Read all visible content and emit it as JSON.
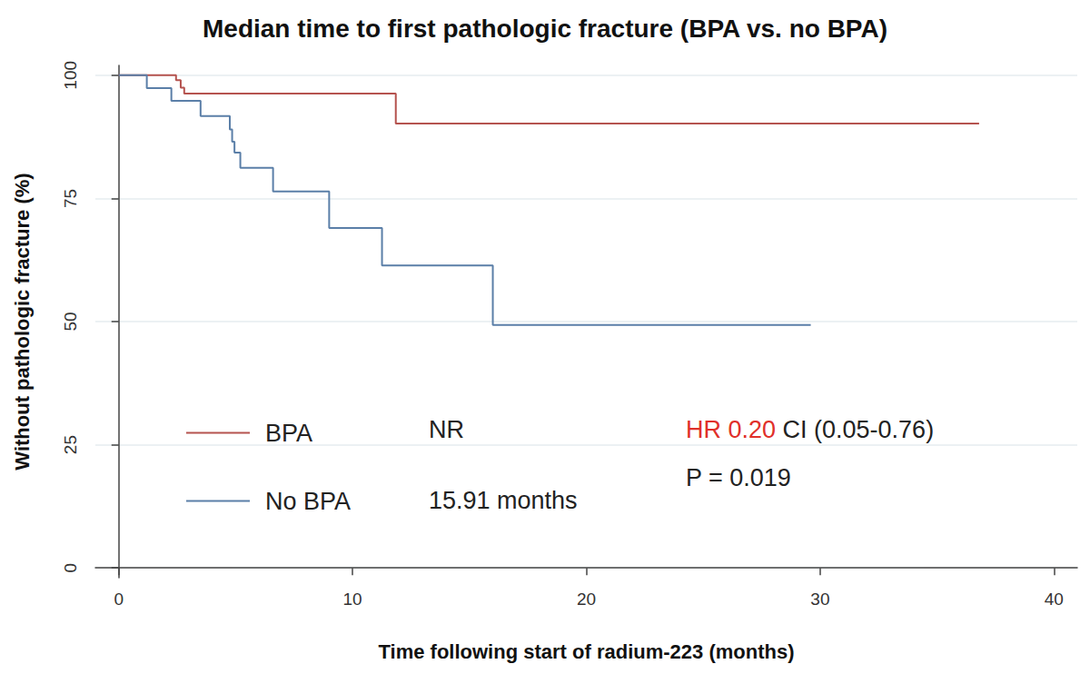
{
  "chart_data": {
    "type": "step",
    "title": "Median time to first pathologic fracture (BPA vs. no BPA)",
    "x_label": "Time following start of radium-223 (months)",
    "y_label": "Without pathologic fracture (%)",
    "xlim": [
      -1,
      41
    ],
    "xticks": [
      0,
      10,
      20,
      30,
      40
    ],
    "ylim": [
      -2,
      102
    ],
    "yticks": [
      0,
      25,
      50,
      75,
      100
    ],
    "grid": true,
    "legend": "lower left",
    "series": [
      {
        "name": "BPA",
        "color": "#b5534f",
        "median": "NR",
        "x": [
          0,
          2.45,
          2.65,
          2.8,
          11.85,
          36.8
        ],
        "values": [
          100,
          99,
          97.5,
          96.3,
          90.2,
          90.2
        ]
      },
      {
        "name": "No BPA",
        "color": "#5b7fa8",
        "median": "15.91 months",
        "x": [
          0,
          1.2,
          2.25,
          3.5,
          4.75,
          4.85,
          4.95,
          5.2,
          6.6,
          9.0,
          11.26,
          16.0,
          29.6
        ],
        "values": [
          100,
          97.4,
          94.8,
          91.7,
          89,
          86.5,
          84.3,
          81.2,
          76.4,
          69,
          61.4,
          49.3,
          49.3
        ]
      }
    ],
    "annotations": [
      {
        "text": "HR 0.20",
        "color": "#e0302a"
      },
      {
        "text": "CI (0.05-0.76)"
      },
      {
        "text": "P = 0.019"
      }
    ]
  }
}
